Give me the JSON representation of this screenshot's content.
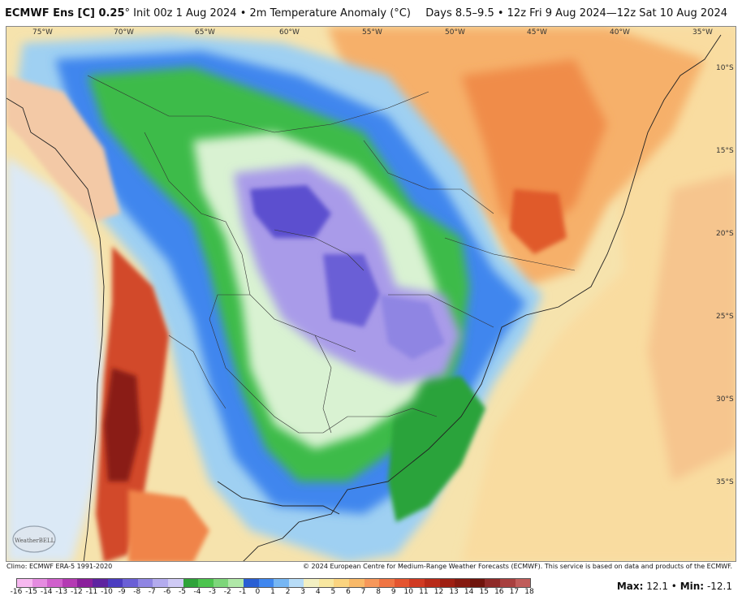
{
  "header": {
    "model": "ECMWF Ens [C] 0.25",
    "init": "° Init 00z 1 Aug 2024 • 2m Temperature Anomaly (°C)",
    "valid": "Days 8.5–9.5 • 12z Fri 9 Aug 2024—12z Sat 10 Aug 2024"
  },
  "map": {
    "longitudes": [
      "75°W",
      "70°W",
      "65°W",
      "60°W",
      "55°W",
      "50°W",
      "45°W",
      "40°W",
      "35°W"
    ],
    "latitudes": [
      "10°S",
      "15°S",
      "20°S",
      "25°S",
      "30°S",
      "35°S"
    ],
    "logo_text": "WeatherBELL"
  },
  "credits": {
    "climo": "Climo: ECMWF ERA-5 1991-2020",
    "note": "© 2024 European Centre for Medium-Range Weather Forecasts (ECMWF). This service is based on data and products of the ECMWF."
  },
  "legend": {
    "labels": [
      "-16",
      "-15",
      "-14",
      "-13",
      "-12",
      "-11",
      "-10",
      "-9",
      "-8",
      "-7",
      "-6",
      "-5",
      "-4",
      "-3",
      "-2",
      "-1",
      "0",
      "1",
      "2",
      "3",
      "4",
      "5",
      "6",
      "7",
      "8",
      "9",
      "10",
      "11",
      "12",
      "13",
      "14",
      "15",
      "16",
      "17",
      "18"
    ],
    "colors": [
      "#f7b8f0",
      "#e58be0",
      "#d060cc",
      "#b43ab3",
      "#8a1f9b",
      "#5e23a0",
      "#4b3cc0",
      "#6a5fd6",
      "#8f85e3",
      "#b3abee",
      "#cfcaf5",
      "#2fa33a",
      "#4cc44e",
      "#7dd67a",
      "#b0e8a8",
      "#2a5fd3",
      "#3f86ee",
      "#76b6f3",
      "#b7dcf7",
      "#f3f0c2",
      "#f8e7a0",
      "#fbd47f",
      "#f9b968",
      "#f6975a",
      "#ef7443",
      "#e4542f",
      "#d03a22",
      "#b82a18",
      "#9e1f12",
      "#85190f",
      "#6f140c",
      "#8e2a28",
      "#a8403f",
      "#c05c5a"
    ],
    "max_label": "Max:",
    "max_value": "12.1",
    "min_label": "Min:",
    "min_value": "-12.1"
  }
}
